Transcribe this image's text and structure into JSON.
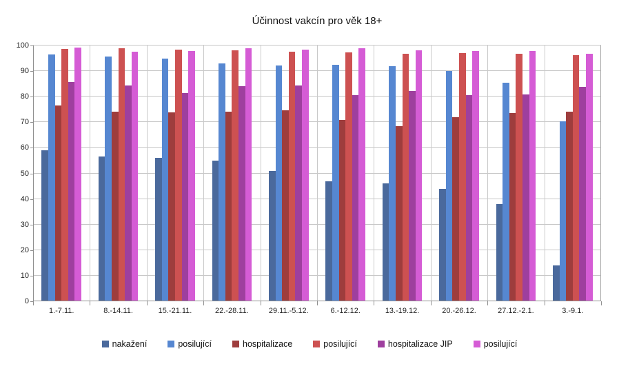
{
  "chart_data": {
    "type": "bar",
    "title": "Účinnost vakcín pro věk 18+",
    "categories": [
      "1.-7.11.",
      "8.-14.11.",
      "15.-21.11.",
      "22.-28.11.",
      "29.11.-5.12.",
      "6.-12.12.",
      "13.-19.12.",
      "20.-26.12.",
      "27.12.-2.1.",
      "3.-9.1."
    ],
    "series": [
      {
        "name": "nakažení",
        "color": "#4a699c",
        "values": [
          59,
          56.5,
          56,
          55,
          51,
          47,
          46,
          44,
          38,
          14
        ]
      },
      {
        "name": "posilující",
        "color": "#5687d1",
        "values": [
          96.6,
          95.8,
          95,
          93,
          92.2,
          92.4,
          91.8,
          90,
          85.5,
          70.4
        ]
      },
      {
        "name": "hospitalizace",
        "color": "#9e3d3d",
        "values": [
          76.6,
          74.2,
          73.8,
          74.2,
          74.7,
          71,
          68.4,
          72,
          73.5,
          74
        ]
      },
      {
        "name": "posilující",
        "color": "#cd5151",
        "values": [
          98.6,
          98.8,
          98.5,
          98.1,
          97.6,
          97.4,
          96.9,
          97.1,
          96.8,
          96.1
        ]
      },
      {
        "name": "hospitalizace JIP",
        "color": "#9e3f9e",
        "values": [
          85.6,
          84.3,
          81.5,
          84.1,
          84.5,
          80.7,
          82.3,
          80.7,
          80.9,
          83.8
        ]
      },
      {
        "name": "posilující",
        "color": "#d55cd5",
        "values": [
          99.2,
          97.5,
          97.8,
          99,
          98.3,
          99,
          98.1,
          97.8,
          97.9,
          96.9
        ]
      }
    ],
    "ylabel": "",
    "xlabel": "",
    "ylim": [
      0,
      100
    ],
    "ytick_step": 10,
    "grid": true,
    "legend_position": "bottom",
    "background_color": "#ffffff",
    "gridline_color": "#c6c6c6",
    "axis_color": "#8f8f8f"
  }
}
